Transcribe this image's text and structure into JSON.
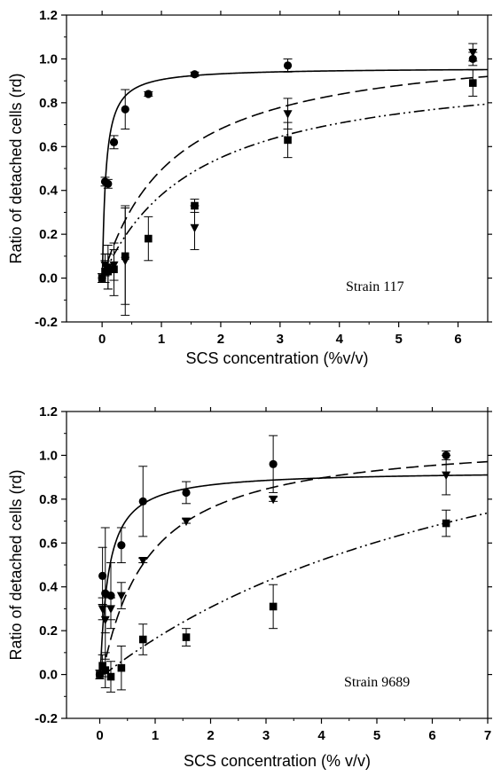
{
  "chart_data": [
    {
      "type": "scatter",
      "title": "",
      "xlabel": "SCS concentration (%v/v)",
      "ylabel": "Ratio of detached cells (rd)",
      "annotation": "Strain 117",
      "xlim": [
        -0.6,
        6.5
      ],
      "ylim": [
        -0.2,
        1.2
      ],
      "xticks": [
        "0",
        "1",
        "2",
        "3",
        "4",
        "5",
        "6"
      ],
      "yticks": [
        "-0.2",
        "0.0",
        "0.2",
        "0.4",
        "0.6",
        "0.8",
        "1.0",
        "1.2"
      ],
      "grid": false,
      "series": [
        {
          "marker": "circle",
          "line": "solid",
          "fit": {
            "model": "hyperbolic",
            "ymax": 0.96,
            "k": 0.06,
            "x0": 0.005
          },
          "points": [
            {
              "x": 0.0,
              "y": 0.0,
              "err": 0.02
            },
            {
              "x": 0.05,
              "y": 0.44,
              "err": 0.02
            },
            {
              "x": 0.1,
              "y": 0.43,
              "err": 0.02
            },
            {
              "x": 0.2,
              "y": 0.62,
              "err": 0.03
            },
            {
              "x": 0.39,
              "y": 0.77,
              "err": 0.09
            },
            {
              "x": 0.78,
              "y": 0.84,
              "err": 0.01
            },
            {
              "x": 1.56,
              "y": 0.93,
              "err": 0.01
            },
            {
              "x": 3.13,
              "y": 0.97,
              "err": 0.03
            },
            {
              "x": 6.25,
              "y": 1.0,
              "err": 0.03
            }
          ]
        },
        {
          "marker": "triangle-down",
          "line": "dashed",
          "fit": {
            "model": "hyperbolic",
            "ymax": 1.09,
            "k": 1.2,
            "x0": 0.005
          },
          "points": [
            {
              "x": 0.05,
              "y": 0.06,
              "err": 0.05
            },
            {
              "x": 0.1,
              "y": 0.05,
              "err": 0.1
            },
            {
              "x": 0.2,
              "y": 0.06,
              "err": 0.07
            },
            {
              "x": 0.39,
              "y": 0.08,
              "err": 0.25
            },
            {
              "x": 1.56,
              "y": 0.23,
              "err": 0.1
            },
            {
              "x": 3.13,
              "y": 0.75,
              "err": 0.07
            },
            {
              "x": 6.25,
              "y": 1.03,
              "err": 0.04
            }
          ]
        },
        {
          "marker": "square",
          "line": "dash-dot-dot",
          "fit": {
            "model": "hyperbolic",
            "ymax": 0.99,
            "k": 1.6,
            "x0": 0.005
          },
          "points": [
            {
              "x": 0.0,
              "y": 0.0,
              "err": 0.02
            },
            {
              "x": 0.05,
              "y": 0.03,
              "err": 0.05
            },
            {
              "x": 0.1,
              "y": 0.03,
              "err": 0.08
            },
            {
              "x": 0.2,
              "y": 0.04,
              "err": 0.12
            },
            {
              "x": 0.39,
              "y": 0.1,
              "err": 0.22
            },
            {
              "x": 0.78,
              "y": 0.18,
              "err": 0.1
            },
            {
              "x": 1.56,
              "y": 0.33,
              "err": 0.03
            },
            {
              "x": 3.13,
              "y": 0.63,
              "err": 0.08
            },
            {
              "x": 6.25,
              "y": 0.89,
              "err": 0.06
            }
          ]
        }
      ]
    },
    {
      "type": "scatter",
      "title": "",
      "xlabel": "SCS concentration (% v/v)",
      "ylabel": "Ratio of detached cells (rd)",
      "annotation": "Strain 9689",
      "xlim": [
        -0.6,
        7.0
      ],
      "ylim": [
        -0.2,
        1.2
      ],
      "xticks": [
        "0",
        "1",
        "2",
        "3",
        "4",
        "5",
        "6",
        "7"
      ],
      "yticks": [
        "-0.2",
        "0.0",
        "0.2",
        "0.4",
        "0.6",
        "0.8",
        "1.0",
        "1.2"
      ],
      "grid": false,
      "series": [
        {
          "marker": "circle",
          "line": "solid",
          "fit": {
            "model": "hyperbolic",
            "ymax": 0.93,
            "k": 0.15,
            "x0": 0.01
          },
          "points": [
            {
              "x": 0.0,
              "y": 0.0,
              "err": 0.02
            },
            {
              "x": 0.05,
              "y": 0.45,
              "err": 0.13
            },
            {
              "x": 0.1,
              "y": 0.37,
              "err": 0.3
            },
            {
              "x": 0.2,
              "y": 0.36,
              "err": 0.15
            },
            {
              "x": 0.39,
              "y": 0.59,
              "err": 0.08
            },
            {
              "x": 0.78,
              "y": 0.79,
              "err": 0.16
            },
            {
              "x": 1.56,
              "y": 0.83,
              "err": 0.05
            },
            {
              "x": 3.13,
              "y": 0.96,
              "err": 0.13
            },
            {
              "x": 6.25,
              "y": 1.0,
              "err": 0.02
            }
          ]
        },
        {
          "marker": "triangle-down",
          "line": "dashed",
          "fit": {
            "model": "hyperbolic",
            "ymax": 1.09,
            "k": 0.85,
            "x0": 0.05
          },
          "points": [
            {
              "x": 0.05,
              "y": 0.3,
              "err": 0.05
            },
            {
              "x": 0.1,
              "y": 0.25,
              "err": 0.06
            },
            {
              "x": 0.2,
              "y": 0.3,
              "err": 0.05
            },
            {
              "x": 0.39,
              "y": 0.36,
              "err": 0.06
            },
            {
              "x": 0.78,
              "y": 0.52,
              "err": 0.01
            },
            {
              "x": 1.56,
              "y": 0.7,
              "err": 0.01
            },
            {
              "x": 3.13,
              "y": 0.8,
              "err": 0.01
            },
            {
              "x": 6.25,
              "y": 0.91,
              "err": 0.09
            }
          ]
        },
        {
          "marker": "square",
          "line": "dash-dot-dot",
          "fit": {
            "model": "hyperbolic",
            "ymax": 1.6,
            "k": 8.1,
            "x0": 0.08
          },
          "points": [
            {
              "x": 0.0,
              "y": 0.0,
              "err": 0.02
            },
            {
              "x": 0.05,
              "y": 0.04,
              "err": 0.05
            },
            {
              "x": 0.1,
              "y": 0.02,
              "err": 0.08
            },
            {
              "x": 0.2,
              "y": -0.01,
              "err": 0.07
            },
            {
              "x": 0.39,
              "y": 0.03,
              "err": 0.1
            },
            {
              "x": 0.78,
              "y": 0.16,
              "err": 0.07
            },
            {
              "x": 1.56,
              "y": 0.17,
              "err": 0.04
            },
            {
              "x": 3.13,
              "y": 0.31,
              "err": 0.1
            },
            {
              "x": 6.25,
              "y": 0.69,
              "err": 0.06
            }
          ]
        }
      ]
    }
  ]
}
